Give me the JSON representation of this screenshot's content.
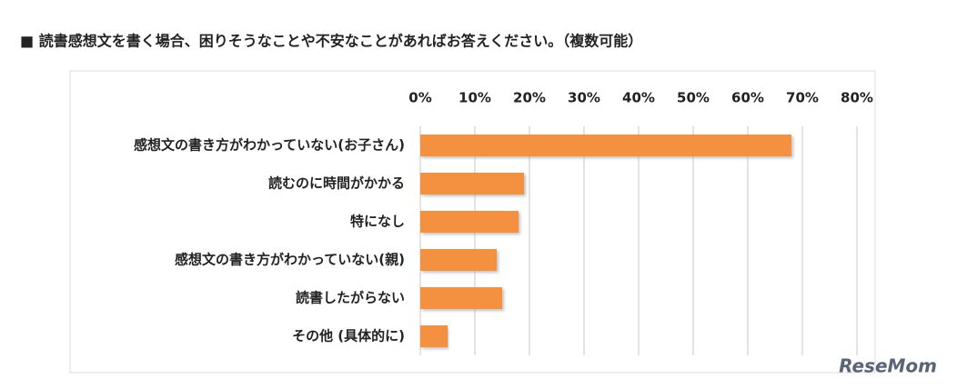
{
  "chart_data": {
    "type": "hbar",
    "title": "■ 読書感想文を書く場合、困りそうなことや不安なことがあればお答えください。（複数可能）",
    "categories": [
      "感想文の書き方がわかっていない(お子さん)",
      "読むのに時間がかかる",
      "特になし",
      "感想文の書き方がわかっていない(親)",
      "読書したがらない",
      "その他 (具体的に)"
    ],
    "values": [
      68,
      19,
      18,
      14,
      15,
      5
    ],
    "color": "#f4913f",
    "xlim": [
      0,
      80
    ],
    "xticks": [
      {
        "value": 0,
        "label": "0%"
      },
      {
        "value": 10,
        "label": "10%"
      },
      {
        "value": 20,
        "label": "20%"
      },
      {
        "value": 30,
        "label": "30%"
      },
      {
        "value": 40,
        "label": "40%"
      },
      {
        "value": 50,
        "label": "50%"
      },
      {
        "value": 60,
        "label": "60%"
      },
      {
        "value": 70,
        "label": "70%"
      },
      {
        "value": 80,
        "label": "80%"
      }
    ],
    "grid": true,
    "watermark": "ReseMom"
  }
}
